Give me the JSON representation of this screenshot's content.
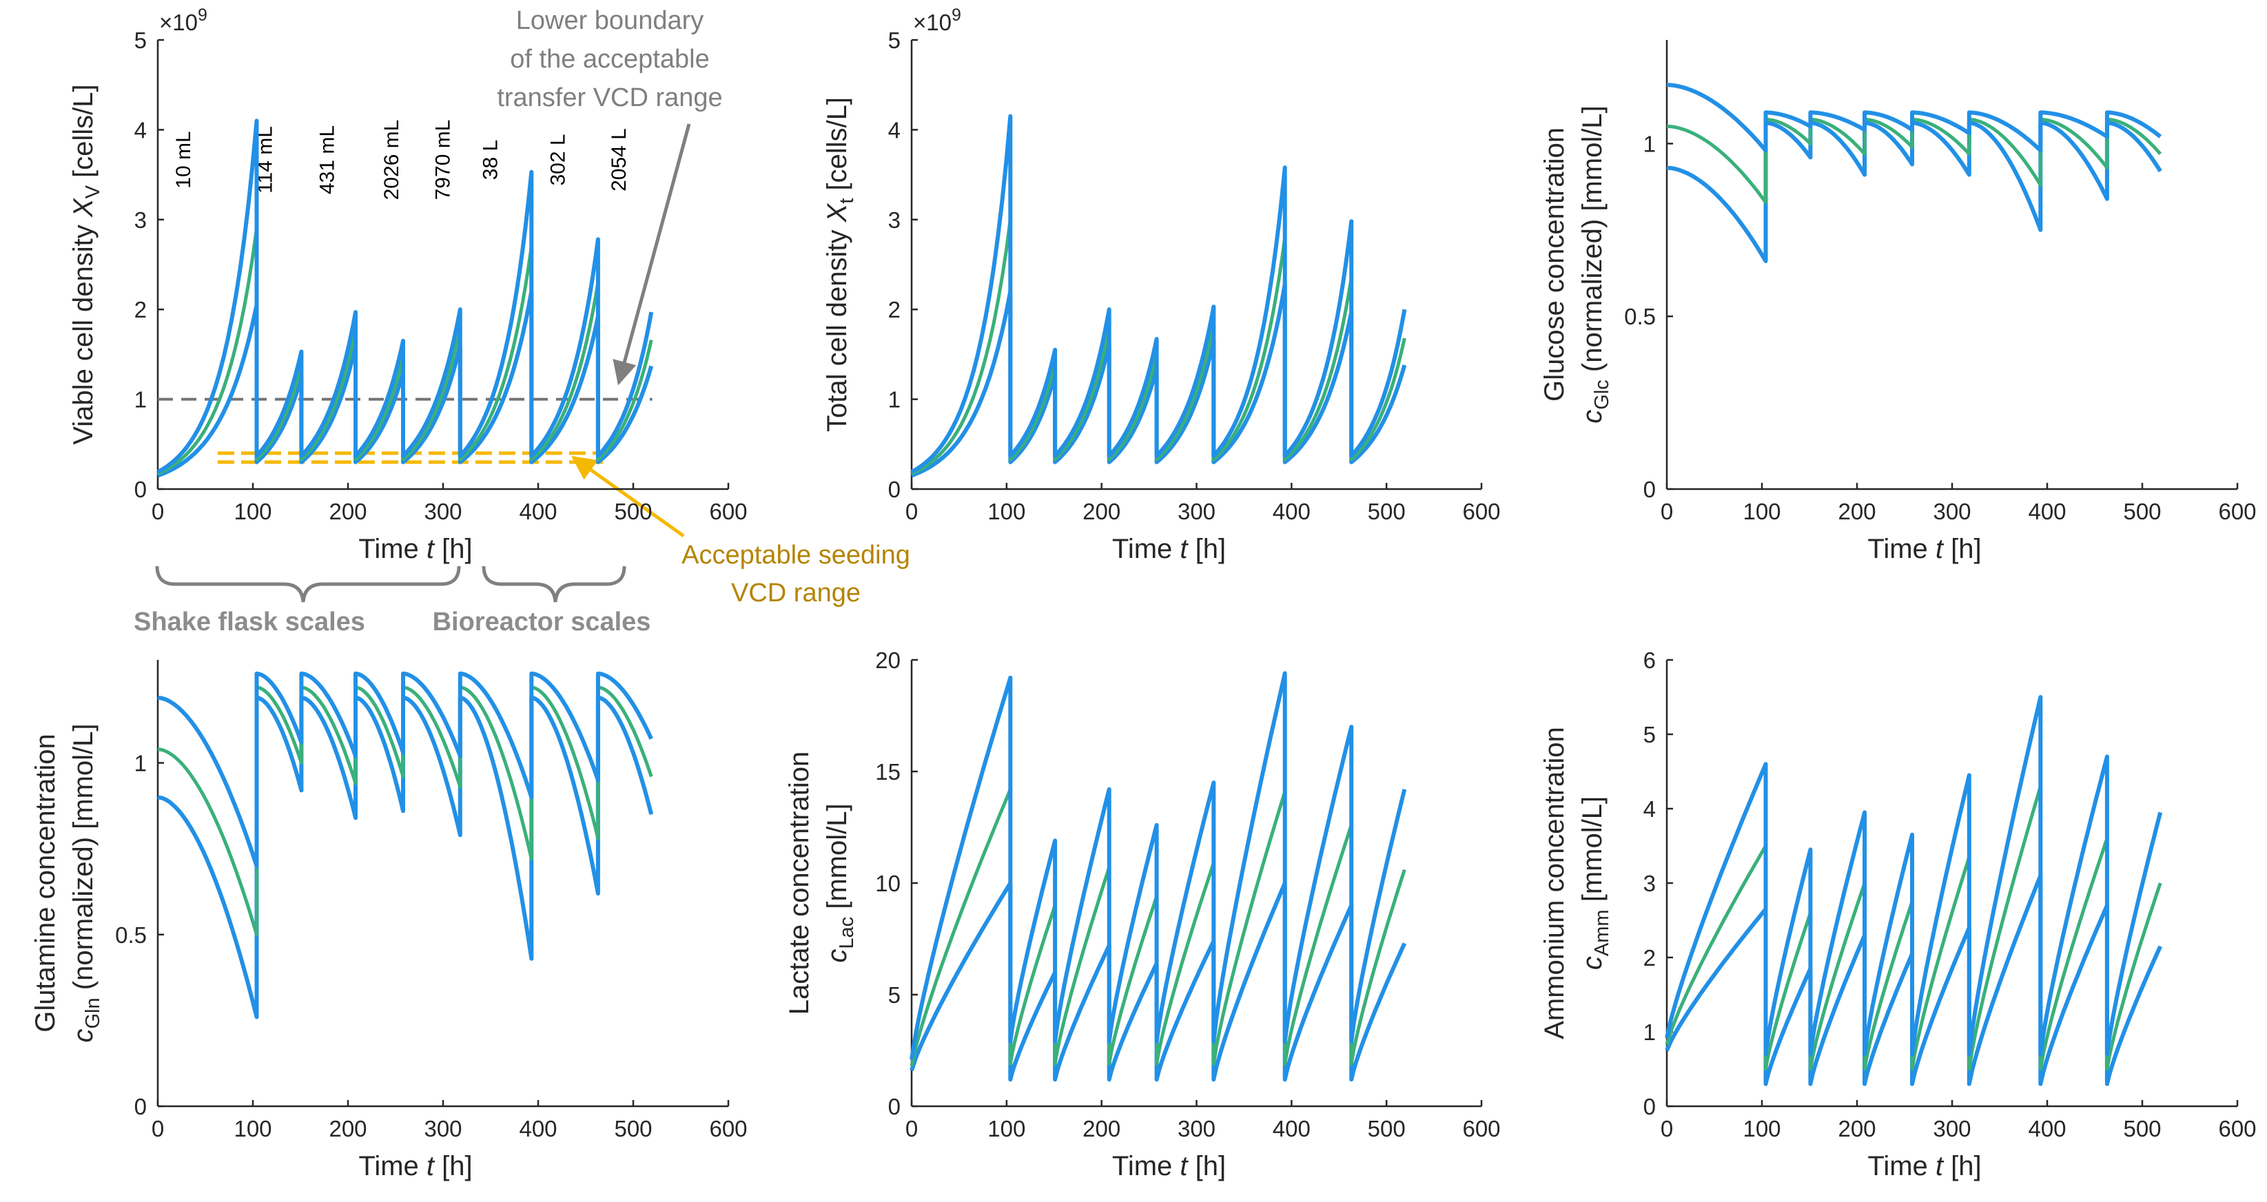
{
  "colors": {
    "outer": "#2290e6",
    "mid": "#3ab07a",
    "axis": "#262626",
    "dashed_grey": "#737373",
    "seeding": "#f5b800",
    "seeding_text": "#b58400",
    "arrow_grey": "#7f7f7f",
    "brace": "#808080",
    "scale_text": "#8c8c8c"
  },
  "transfer_times": [
    0,
    104,
    151,
    208,
    258,
    318,
    393,
    463,
    519
  ],
  "chart_data": [
    {
      "id": "vcd",
      "type": "line",
      "y_label_parts": [
        "Viable cell density  ",
        "X",
        "V",
        " [cells/L]"
      ],
      "x_label_parts": [
        "Time  ",
        "t",
        " [h]"
      ],
      "xlim": [
        0,
        600
      ],
      "ylim": [
        0,
        5
      ],
      "x_ticks": [
        "0",
        "100",
        "200",
        "300",
        "400",
        "500",
        "600"
      ],
      "y_ticks": [
        "0",
        "1",
        "2",
        "3",
        "4",
        "5"
      ],
      "y_exponent": "×10",
      "y_exponent_power": "9",
      "mode": "growth",
      "start": {
        "lower": 0.15,
        "mid": 0.17,
        "upper": 0.19
      },
      "seg_start": {
        "lower": 0.3,
        "mid": 0.33,
        "upper": 0.37
      },
      "seg_end": {
        "lower": [
          2.05,
          1.25,
          1.6,
          1.3,
          1.6,
          2.2,
          1.92,
          1.37
        ],
        "mid": [
          2.9,
          1.38,
          1.78,
          1.47,
          1.8,
          2.7,
          2.3,
          1.66
        ],
        "upper": [
          4.1,
          1.53,
          1.97,
          1.65,
          2.0,
          3.53,
          2.78,
          1.97
        ]
      },
      "scale_labels": [
        "10 mL",
        "114 mL",
        "431 mL",
        "2026  mL",
        "7970  mL",
        "38 L",
        "302 L",
        "2054 L"
      ],
      "threshold": 1.0,
      "seeding_range": [
        0.3,
        0.4
      ],
      "threshold_annotation": [
        "Lower boundary",
        "of the acceptable",
        "transfer VCD range"
      ],
      "seeding_annotation": [
        "Acceptable seeding",
        "VCD range"
      ],
      "scale_groups": [
        "Shake flask scales",
        "Bioreactor scales"
      ]
    },
    {
      "id": "tcd",
      "type": "line",
      "y_label_parts": [
        "Total cell density  ",
        "X",
        "t",
        " [cells/L]"
      ],
      "x_label_parts": [
        "Time  ",
        "t",
        " [h]"
      ],
      "xlim": [
        0,
        600
      ],
      "ylim": [
        0,
        5
      ],
      "x_ticks": [
        "0",
        "100",
        "200",
        "300",
        "400",
        "500",
        "600"
      ],
      "y_ticks": [
        "0",
        "1",
        "2",
        "3",
        "4",
        "5"
      ],
      "y_exponent": "×10",
      "y_exponent_power": "9",
      "mode": "growth",
      "start": {
        "lower": 0.15,
        "mid": 0.17,
        "upper": 0.19
      },
      "seg_start": {
        "lower": 0.3,
        "mid": 0.33,
        "upper": 0.37
      },
      "seg_end": {
        "lower": [
          2.2,
          1.28,
          1.62,
          1.35,
          1.65,
          2.28,
          1.97,
          1.38
        ],
        "mid": [
          3.0,
          1.4,
          1.8,
          1.5,
          1.83,
          2.8,
          2.35,
          1.68
        ],
        "upper": [
          4.15,
          1.55,
          2.0,
          1.67,
          2.03,
          3.58,
          2.98,
          2.0
        ]
      }
    },
    {
      "id": "glc",
      "type": "line",
      "y_label_parts": [
        "Glucose concentration",
        "c",
        "Glc",
        " (normalized) [mmol/L]"
      ],
      "x_label_parts": [
        "Time  ",
        "t",
        " [h]"
      ],
      "xlim": [
        0,
        600
      ],
      "ylim": [
        0,
        1.3
      ],
      "x_ticks": [
        "0",
        "100",
        "200",
        "300",
        "400",
        "500",
        "600"
      ],
      "y_ticks": [
        "0",
        "0.5",
        "1"
      ],
      "y_tick_values": [
        0,
        0.5,
        1
      ],
      "mode": "decay",
      "start": {
        "lower": 0.93,
        "mid": 1.05,
        "upper": 1.17
      },
      "seg_start": {
        "lower": 1.06,
        "mid": 1.07,
        "upper": 1.09
      },
      "seg_end": {
        "lower": [
          0.66,
          0.96,
          0.91,
          0.94,
          0.91,
          0.75,
          0.84,
          0.92
        ],
        "mid": [
          0.83,
          1.0,
          0.97,
          0.99,
          0.97,
          0.88,
          0.93,
          0.97
        ],
        "upper": [
          0.98,
          1.05,
          1.04,
          1.04,
          1.03,
          0.98,
          1.02,
          1.02
        ]
      }
    },
    {
      "id": "gln",
      "type": "line",
      "y_label_parts": [
        "Glutamine concentration",
        "c",
        "Gln",
        " (normalized) [mmol/L]"
      ],
      "x_label_parts": [
        "Time  ",
        "t",
        " [h]"
      ],
      "xlim": [
        0,
        600
      ],
      "ylim": [
        0,
        1.3
      ],
      "x_ticks": [
        "0",
        "100",
        "200",
        "300",
        "400",
        "500",
        "600"
      ],
      "y_ticks": [
        "0",
        "0.5",
        "1"
      ],
      "y_tick_values": [
        0,
        0.5,
        1
      ],
      "mode": "decay",
      "start": {
        "lower": 0.9,
        "mid": 1.04,
        "upper": 1.19
      },
      "seg_start": {
        "lower": 1.19,
        "mid": 1.22,
        "upper": 1.26
      },
      "seg_end": {
        "lower": [
          0.26,
          0.92,
          0.84,
          0.86,
          0.79,
          0.43,
          0.62,
          0.85
        ],
        "mid": [
          0.5,
          1.0,
          0.94,
          0.96,
          0.93,
          0.72,
          0.78,
          0.96
        ],
        "upper": [
          0.7,
          1.06,
          1.02,
          1.03,
          1.02,
          0.9,
          0.95,
          1.07
        ]
      }
    },
    {
      "id": "lac",
      "type": "line",
      "y_label_parts": [
        "Lactate concentration",
        "c",
        "Lac",
        " [mmol/L]"
      ],
      "x_label_parts": [
        "Time  ",
        "t",
        " [h]"
      ],
      "xlim": [
        0,
        600
      ],
      "ylim": [
        0,
        20
      ],
      "x_ticks": [
        "0",
        "100",
        "200",
        "300",
        "400",
        "500",
        "600"
      ],
      "y_ticks": [
        "0",
        "5",
        "10",
        "15",
        "20"
      ],
      "y_tick_values": [
        0,
        5,
        10,
        15,
        20
      ],
      "mode": "rise",
      "start": {
        "lower": 1.6,
        "mid": 1.8,
        "upper": 2.1
      },
      "seg_start": {
        "lower": 1.2,
        "mid": 1.9,
        "upper": 2.9
      },
      "seg_end": {
        "lower": [
          10.0,
          6.0,
          7.2,
          6.4,
          7.4,
          10.0,
          9.0,
          7.3
        ],
        "mid": [
          14.2,
          9.0,
          10.7,
          9.4,
          10.9,
          14.1,
          12.6,
          10.6
        ],
        "upper": [
          19.2,
          11.9,
          14.2,
          12.6,
          14.5,
          19.4,
          17.0,
          14.2
        ]
      }
    },
    {
      "id": "amm",
      "type": "line",
      "y_label_parts": [
        "Ammonium concentration",
        "c",
        "Amm",
        " [mmol/L]"
      ],
      "x_label_parts": [
        "Time  ",
        "t",
        " [h]"
      ],
      "xlim": [
        0,
        600
      ],
      "ylim": [
        0,
        6
      ],
      "x_ticks": [
        "0",
        "100",
        "200",
        "300",
        "400",
        "500",
        "600"
      ],
      "y_ticks": [
        "0",
        "1",
        "2",
        "3",
        "4",
        "5",
        "6"
      ],
      "y_tick_values": [
        0,
        1,
        2,
        3,
        4,
        5,
        6
      ],
      "mode": "rise",
      "start": {
        "lower": 0.75,
        "mid": 0.83,
        "upper": 0.92
      },
      "seg_start": {
        "lower": 0.3,
        "mid": 0.5,
        "upper": 0.7
      },
      "seg_end": {
        "lower": [
          2.65,
          1.85,
          2.3,
          2.05,
          2.4,
          3.1,
          2.7,
          2.15
        ],
        "mid": [
          3.5,
          2.6,
          3.0,
          2.75,
          3.35,
          4.3,
          3.6,
          3.0
        ],
        "upper": [
          4.6,
          3.45,
          3.95,
          3.65,
          4.45,
          5.5,
          4.7,
          3.95
        ]
      }
    }
  ]
}
